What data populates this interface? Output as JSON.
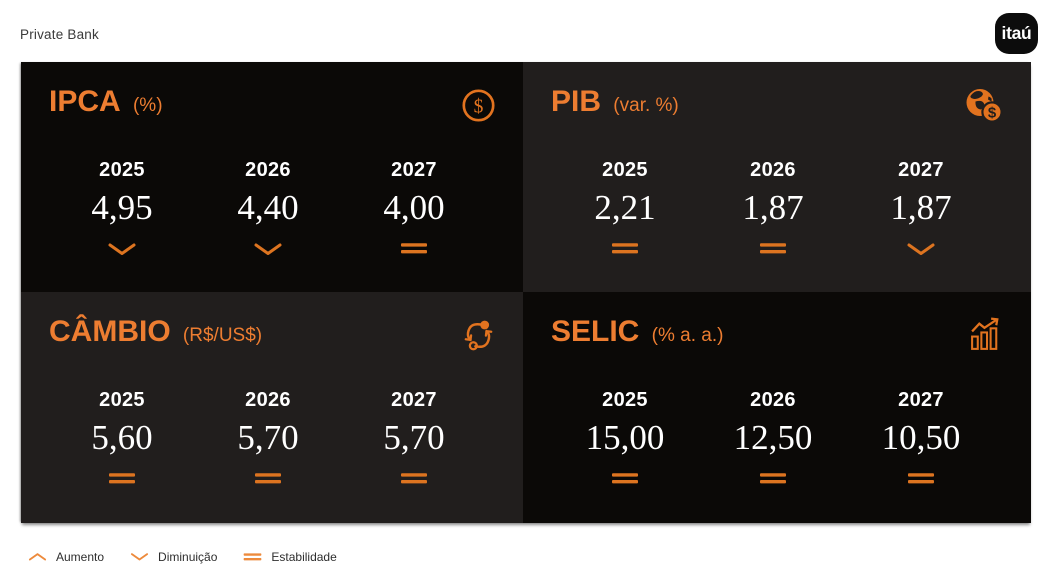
{
  "header": {
    "brand": "Private Bank",
    "logo_text": "itaú"
  },
  "colors": {
    "accent_orange": "#ED7D31",
    "indicator_orange": "#DD7420",
    "tile_black": "#0B0907",
    "tile_charcoal": "#211E1D",
    "logo_black": "#0C0C0C"
  },
  "legend": {
    "items": [
      {
        "icon": "chevron-up-icon",
        "label": "Aumento",
        "meaning": "up"
      },
      {
        "icon": "chevron-down-icon",
        "label": "Diminuição",
        "meaning": "down"
      },
      {
        "icon": "equals-icon",
        "label": "Estabilidade",
        "meaning": "stable"
      }
    ]
  },
  "chart_data": [
    {
      "type": "table",
      "title": "IPCA",
      "unit": "(%)",
      "icon": "coin-dollar-icon",
      "tone": "black",
      "categories": [
        "2025",
        "2026",
        "2027"
      ],
      "values": [
        "4,95",
        "4,40",
        "4,00"
      ],
      "numeric_values": [
        4.95,
        4.4,
        4.0
      ],
      "trends": [
        "down",
        "down",
        "stable"
      ]
    },
    {
      "type": "table",
      "title": "PIB",
      "unit": "(var. %)",
      "icon": "globe-dollar-icon",
      "tone": "charcoal",
      "categories": [
        "2025",
        "2026",
        "2027"
      ],
      "values": [
        "2,21",
        "1,87",
        "1,87"
      ],
      "numeric_values": [
        2.21,
        1.87,
        1.87
      ],
      "trends": [
        "stable",
        "stable",
        "down"
      ]
    },
    {
      "type": "table",
      "title": "CÂMBIO",
      "unit": "(R$/US$)",
      "icon": "exchange-arrows-icon",
      "tone": "charcoal",
      "categories": [
        "2025",
        "2026",
        "2027"
      ],
      "values": [
        "5,60",
        "5,70",
        "5,70"
      ],
      "numeric_values": [
        5.6,
        5.7,
        5.7
      ],
      "trends": [
        "stable",
        "stable",
        "stable"
      ]
    },
    {
      "type": "table",
      "title": "SELIC",
      "unit": "(% a. a.)",
      "icon": "bar-chart-up-icon",
      "tone": "black",
      "categories": [
        "2025",
        "2026",
        "2027"
      ],
      "values": [
        "15,00",
        "12,50",
        "10,50"
      ],
      "numeric_values": [
        15.0,
        12.5,
        10.5
      ],
      "trends": [
        "stable",
        "stable",
        "stable"
      ]
    }
  ]
}
